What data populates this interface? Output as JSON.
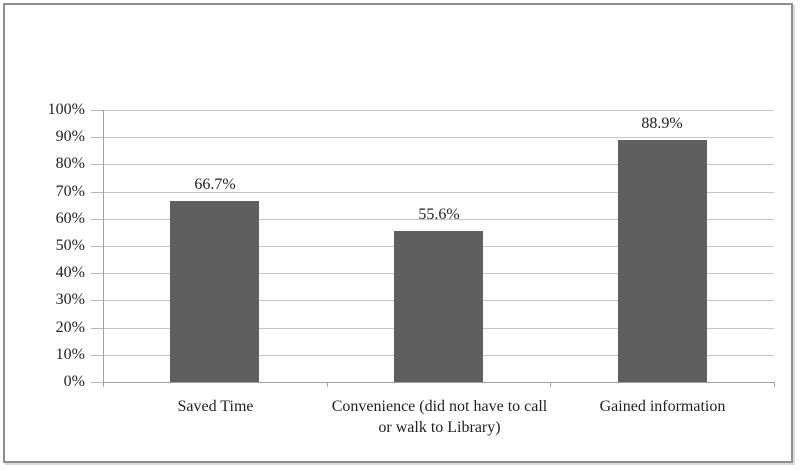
{
  "chart_data": {
    "type": "bar",
    "title": "",
    "xlabel": "",
    "ylabel": "",
    "categories": [
      "Saved Time",
      "Convenience (did not have to call or walk to Library)",
      "Gained information"
    ],
    "values": [
      66.7,
      55.6,
      88.9
    ],
    "data_labels": [
      "66.7%",
      "55.6%",
      "88.9%"
    ],
    "ylim": [
      0,
      100
    ],
    "ytick_step": 10,
    "ytick_labels": [
      "0%",
      "10%",
      "20%",
      "30%",
      "40%",
      "50%",
      "60%",
      "70%",
      "80%",
      "90%",
      "100%"
    ],
    "grid": true,
    "legend": "none",
    "colors": {
      "bar": "#5f5f5f",
      "gridline": "#c5c5c5",
      "axis": "#a2a2a2",
      "text": "#1f1f1f",
      "frame_border": "#8e8e8e"
    }
  }
}
